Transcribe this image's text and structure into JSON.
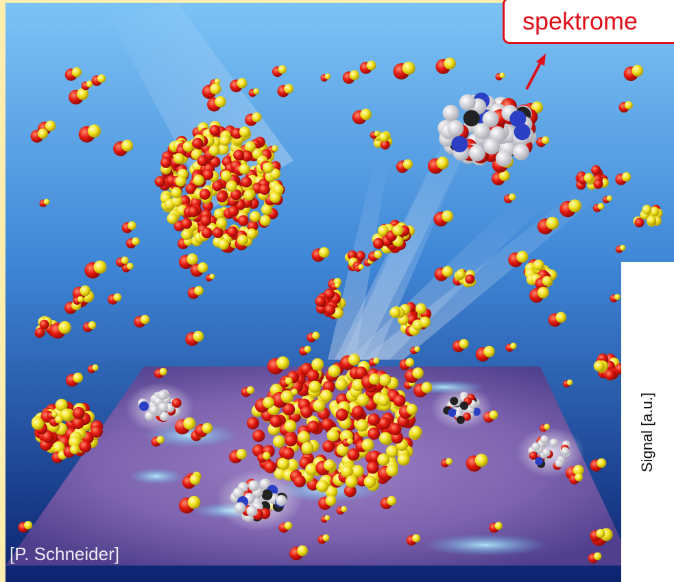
{
  "callout": {
    "label": "spektrome"
  },
  "side_axis": {
    "label": "Signal [a.u.]"
  },
  "credit": {
    "text": "[P. Schneider]"
  },
  "colors": {
    "frame": "#fdeeb0",
    "sky_top": "#79bdf2",
    "sky_bottom": "#0e2a7a",
    "surface": "#8a6fb6",
    "oxygen": "#e3180f",
    "sulfur": "#f2e21f",
    "accent": "#e0101a"
  }
}
